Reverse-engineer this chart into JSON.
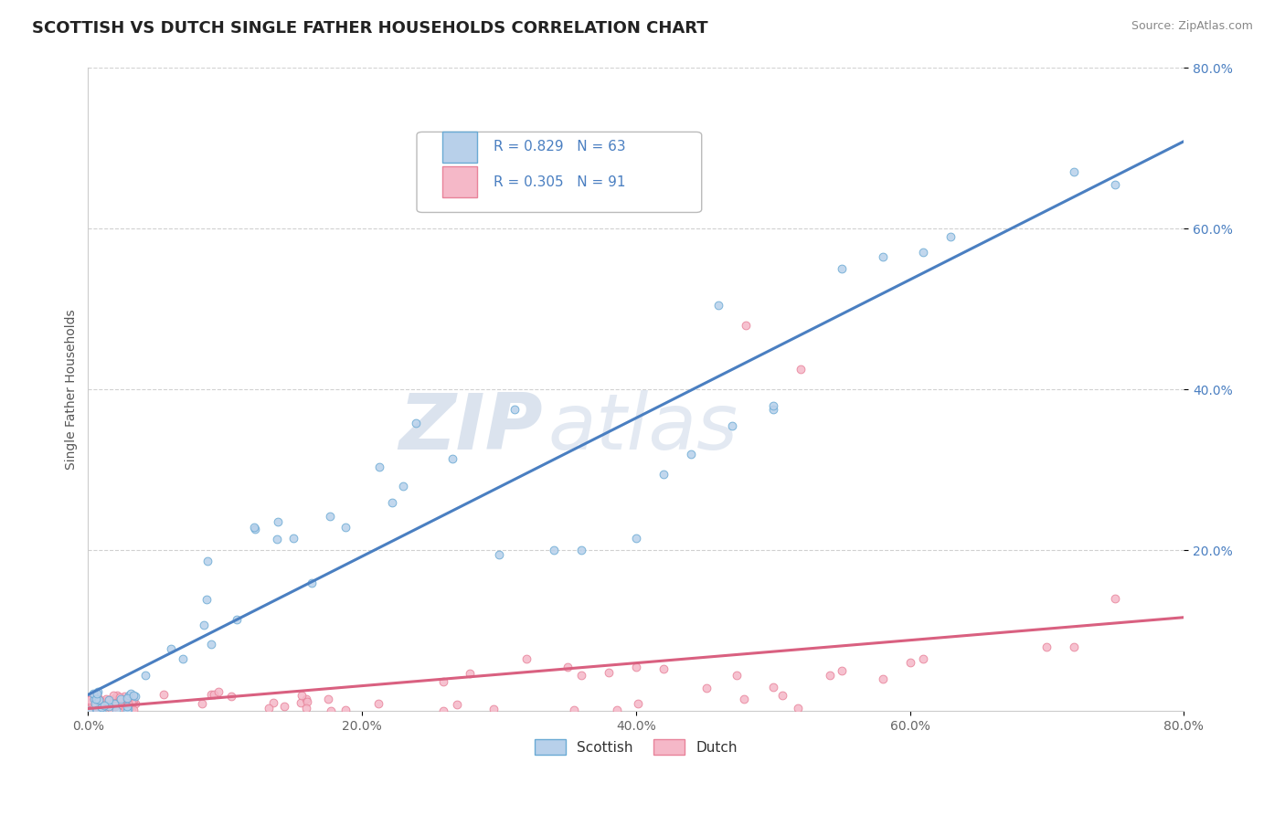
{
  "title": "SCOTTISH VS DUTCH SINGLE FATHER HOUSEHOLDS CORRELATION CHART",
  "source": "Source: ZipAtlas.com",
  "ylabel": "Single Father Households",
  "xlim": [
    0.0,
    0.8
  ],
  "ylim": [
    0.0,
    0.8
  ],
  "xtick_labels": [
    "0.0%",
    "20.0%",
    "40.0%",
    "60.0%",
    "80.0%"
  ],
  "xtick_vals": [
    0.0,
    0.2,
    0.4,
    0.6,
    0.8
  ],
  "ytick_labels": [
    "80.0%",
    "60.0%",
    "40.0%",
    "20.0%"
  ],
  "ytick_vals": [
    0.8,
    0.6,
    0.4,
    0.2
  ],
  "scottish_fill": "#b8d0ea",
  "dutch_fill": "#f5b8c8",
  "scottish_edge": "#6aaad4",
  "dutch_edge": "#e8839a",
  "scottish_line": "#4a7fc1",
  "dutch_line": "#d96080",
  "legend_R_scottish": "0.829",
  "legend_N_scottish": "63",
  "legend_R_dutch": "0.305",
  "legend_N_dutch": "91",
  "watermark_color": "#ccd8e8",
  "background_color": "#ffffff",
  "grid_color": "#cccccc",
  "title_fontsize": 13,
  "axis_label_fontsize": 10,
  "tick_fontsize": 10,
  "legend_text_color": "#4a7fc1"
}
